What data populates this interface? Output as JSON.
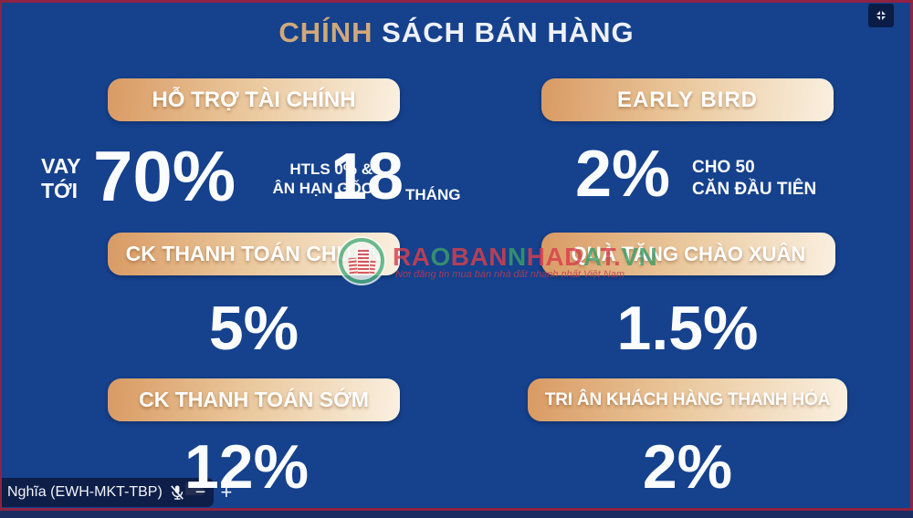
{
  "title": {
    "accent": "CHÍNH",
    "rest": " SÁCH BÁN HÀNG",
    "full": "CHÍNH SÁCH BÁN HÀNG"
  },
  "left": {
    "banner_finance": "HỖ TRỢ TÀI CHÍNH",
    "loan": {
      "vay": "VAY",
      "toi": "TỚI",
      "percent": "70%",
      "htls1": "HTLS 0% &",
      "htls2": "ÂN HẠN GỐC",
      "months": "18",
      "thang": "THÁNG"
    },
    "banner_standard": "CK THANH TOÁN CHUẨN",
    "standard_value": "5%",
    "banner_early_pay": "CK THANH TOÁN SỚM",
    "early_pay_value": "12%"
  },
  "right": {
    "banner_early_bird": "EARLY BIRD",
    "early_bird": {
      "percent": "2%",
      "line1": "CHO 50",
      "line2": "CĂN ĐẦU TIÊN"
    },
    "banner_gift": "QUÀ TẶNG CHÀO XUÂN",
    "gift_value": "1.5%",
    "banner_tribute": "TRI ÂN KHÁCH HÀNG THANH HÓA",
    "tribute_value": "2%"
  },
  "watermark": {
    "brand": "RAOBANNHADAT.VN",
    "letters": [
      {
        "ch": "R",
        "color": "#d7404d"
      },
      {
        "ch": "A",
        "color": "#d7404d"
      },
      {
        "ch": "O",
        "color": "#3d9e6a"
      },
      {
        "ch": "B",
        "color": "#d7404d"
      },
      {
        "ch": "A",
        "color": "#d7404d"
      },
      {
        "ch": "N",
        "color": "#d7404d"
      },
      {
        "ch": "N",
        "color": "#3d9e6a"
      },
      {
        "ch": "H",
        "color": "#d7404d"
      },
      {
        "ch": "A",
        "color": "#d7404d"
      },
      {
        "ch": "D",
        "color": "#d7404d"
      },
      {
        "ch": "A",
        "color": "#3d9e6a"
      },
      {
        "ch": "T",
        "color": "#d7404d"
      },
      {
        "ch": ".",
        "color": "#d7404d"
      },
      {
        "ch": "V",
        "color": "#3d9e6a"
      },
      {
        "ch": "N",
        "color": "#3d9e6a"
      }
    ],
    "tagline": "Nơi đăng tin mua bán nhà đất nhanh nhất Việt Nam"
  },
  "call_overlay": {
    "presenter": "Nghĩa (EWH-MKT-TBP)",
    "mic_icon": "mic-muted-icon",
    "minus": "−",
    "plus": "+"
  },
  "window": {
    "collapse_icon": "collapse-arrows-icon"
  },
  "colors": {
    "background": "#15418d",
    "share_border": "#8e2342",
    "banner_gradient_from": "#d99a63",
    "banner_gradient_to": "#faf0e0",
    "title_accent": "#cfa87c",
    "text_white": "#fbfcfe",
    "brand_red": "#d7404d",
    "brand_green": "#3d9e6a"
  }
}
